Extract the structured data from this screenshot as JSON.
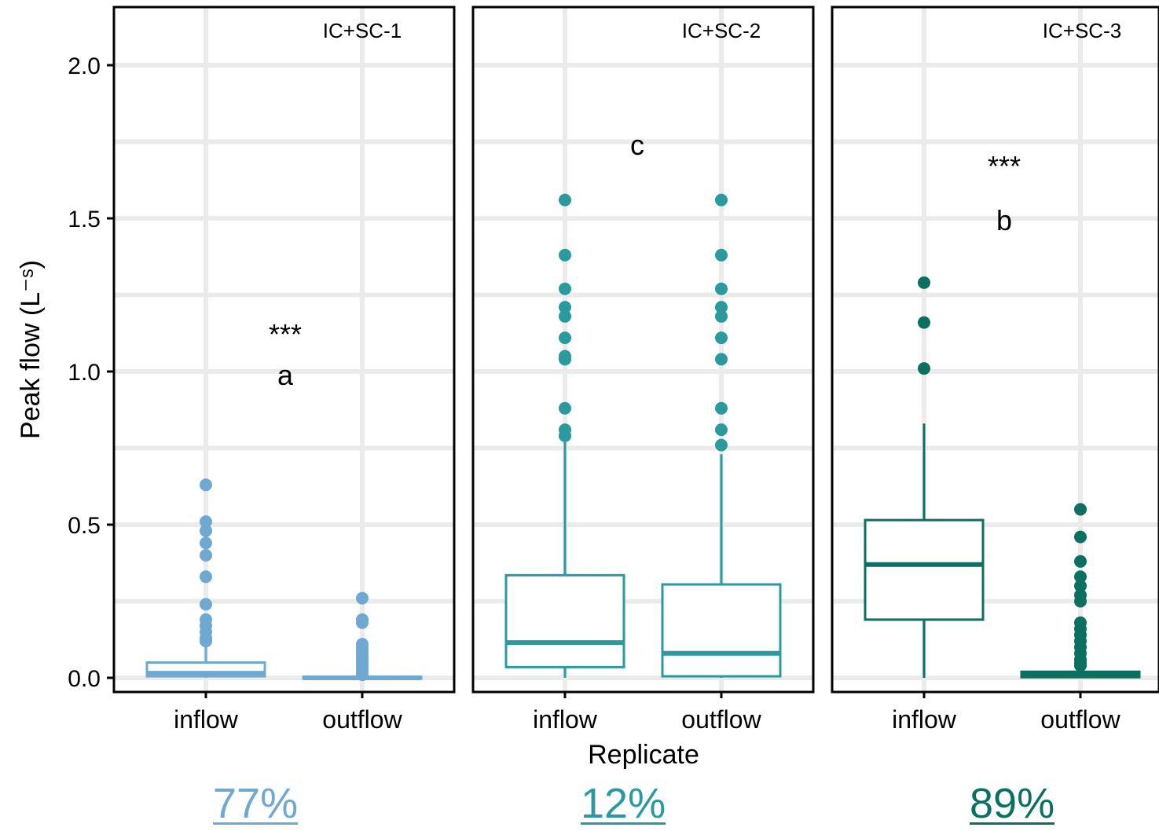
{
  "chart_data": {
    "type": "box",
    "xlabel": "Replicate",
    "ylabel": "Peak flow (L⁻ˢ)",
    "ylim": [
      0,
      2.2
    ],
    "yticks": [
      "0.0",
      "0.5",
      "1.0",
      "1.5",
      "2.0"
    ],
    "grid": true,
    "panels": [
      {
        "title": "IC+SC-1",
        "color": "#6FA8D0",
        "letter": "a",
        "significance": "***",
        "percent": "77%",
        "categories": [
          "inflow",
          "outflow"
        ],
        "boxes": [
          {
            "q1": 0.005,
            "median": 0.015,
            "q3": 0.05,
            "whisker_low": 0.0,
            "whisker_high": 0.1,
            "outliers": [
              0.63,
              0.51,
              0.48,
              0.44,
              0.4,
              0.33,
              0.24,
              0.19,
              0.17,
              0.15,
              0.13,
              0.12
            ]
          },
          {
            "q1": 0.0,
            "median": 0.0,
            "q3": 0.003,
            "whisker_low": 0.0,
            "whisker_high": 0.008,
            "outliers": [
              0.26,
              0.19,
              0.18,
              0.11,
              0.1,
              0.09,
              0.08,
              0.07,
              0.06,
              0.05,
              0.04,
              0.03,
              0.02,
              0.01
            ]
          }
        ]
      },
      {
        "title": "IC+SC-2",
        "color": "#2A9A9F",
        "letter": "c",
        "significance": "",
        "percent": "12%",
        "categories": [
          "inflow",
          "outflow"
        ],
        "boxes": [
          {
            "q1": 0.035,
            "median": 0.115,
            "q3": 0.335,
            "whisker_low": 0.0,
            "whisker_high": 0.77,
            "outliers": [
              1.56,
              1.38,
              1.27,
              1.21,
              1.18,
              1.11,
              1.05,
              1.04,
              0.88,
              0.81,
              0.79
            ]
          },
          {
            "q1": 0.005,
            "median": 0.08,
            "q3": 0.305,
            "whisker_low": 0.0,
            "whisker_high": 0.73,
            "outliers": [
              1.56,
              1.38,
              1.27,
              1.21,
              1.18,
              1.11,
              1.04,
              0.88,
              0.81,
              0.76
            ]
          }
        ]
      },
      {
        "title": "IC+SC-3",
        "color": "#0B7060",
        "letter": "b",
        "significance": "***",
        "percent": "89%",
        "categories": [
          "inflow",
          "outflow"
        ],
        "boxes": [
          {
            "q1": 0.19,
            "median": 0.37,
            "q3": 0.515,
            "whisker_low": 0.0,
            "whisker_high": 0.83,
            "outliers": [
              1.29,
              1.16,
              1.01
            ]
          },
          {
            "q1": 0.002,
            "median": 0.01,
            "q3": 0.02,
            "whisker_low": 0.0,
            "whisker_high": 0.03,
            "outliers": [
              0.55,
              0.46,
              0.38,
              0.33,
              0.3,
              0.27,
              0.25,
              0.18,
              0.16,
              0.14,
              0.12,
              0.1,
              0.08,
              0.06,
              0.05,
              0.04
            ]
          }
        ]
      }
    ]
  }
}
